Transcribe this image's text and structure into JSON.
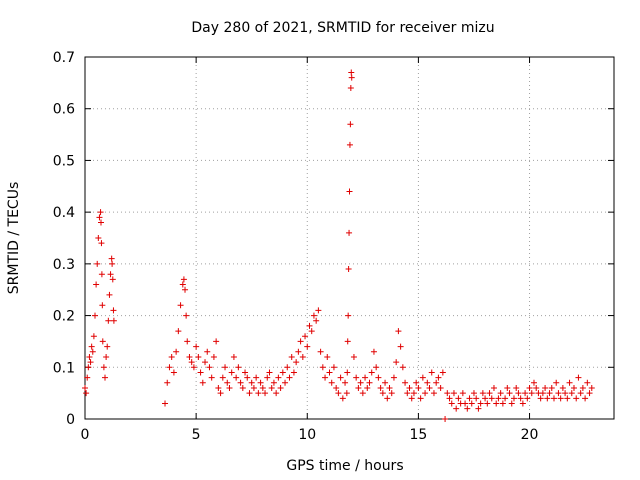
{
  "colors": {
    "series": "#e00000",
    "grid": "#a0a0a0",
    "axis": "#000000"
  },
  "chart_data": {
    "type": "scatter",
    "title": "Day 280 of 2021, SRMTID for receiver mizu",
    "xlabel": "GPS time / hours",
    "ylabel": "SRMTID / TECUs",
    "xlim": [
      0,
      23.8
    ],
    "ylim": [
      0,
      0.7
    ],
    "grid": true,
    "marker": "plus",
    "x_ticks": [
      0,
      5,
      10,
      15,
      20
    ],
    "x_tick_labels": [
      "0",
      "5",
      "10",
      "15",
      "20"
    ],
    "y_ticks": [
      0,
      0.1,
      0.2,
      0.3,
      0.4,
      0.5,
      0.6,
      0.7
    ],
    "y_tick_labels": [
      "0",
      "0.1",
      "0.2",
      "0.3",
      "0.4",
      "0.5",
      "0.6",
      "0.7"
    ],
    "series": [
      {
        "name": "SRMTID",
        "x": [
          0.0,
          0.05,
          0.1,
          0.15,
          0.2,
          0.25,
          0.3,
          0.35,
          0.4,
          0.45,
          0.5,
          0.55,
          0.6,
          0.65,
          0.7,
          0.72,
          0.74,
          0.76,
          0.78,
          0.8,
          0.85,
          0.9,
          0.95,
          1.0,
          1.05,
          1.1,
          1.15,
          1.2,
          1.22,
          1.25,
          1.28,
          1.3,
          3.6,
          3.7,
          3.8,
          3.9,
          4.0,
          4.1,
          4.2,
          4.3,
          4.4,
          4.45,
          4.5,
          4.55,
          4.6,
          4.7,
          4.8,
          4.9,
          5.0,
          5.1,
          5.2,
          5.3,
          5.4,
          5.5,
          5.6,
          5.7,
          5.8,
          5.9,
          6.0,
          6.1,
          6.2,
          6.3,
          6.4,
          6.5,
          6.6,
          6.7,
          6.8,
          6.9,
          7.0,
          7.1,
          7.2,
          7.3,
          7.4,
          7.5,
          7.6,
          7.7,
          7.8,
          7.9,
          8.0,
          8.1,
          8.2,
          8.3,
          8.4,
          8.5,
          8.6,
          8.7,
          8.8,
          8.9,
          9.0,
          9.1,
          9.2,
          9.3,
          9.4,
          9.5,
          9.6,
          9.7,
          9.8,
          9.9,
          10.0,
          10.1,
          10.2,
          10.3,
          10.4,
          10.5,
          10.6,
          10.7,
          10.8,
          10.9,
          11.0,
          11.1,
          11.2,
          11.3,
          11.4,
          11.5,
          11.6,
          11.7,
          11.78,
          11.8,
          11.82,
          11.84,
          11.86,
          11.88,
          11.9,
          11.92,
          11.94,
          11.96,
          11.98,
          12.0,
          12.1,
          12.2,
          12.3,
          12.4,
          12.5,
          12.6,
          12.7,
          12.8,
          12.9,
          13.0,
          13.1,
          13.2,
          13.3,
          13.4,
          13.5,
          13.6,
          13.7,
          13.8,
          13.9,
          14.0,
          14.1,
          14.2,
          14.3,
          14.4,
          14.5,
          14.6,
          14.7,
          14.8,
          14.9,
          15.0,
          15.1,
          15.2,
          15.3,
          15.4,
          15.5,
          15.6,
          15.7,
          15.8,
          15.9,
          16.0,
          16.1,
          16.2,
          16.3,
          16.4,
          16.5,
          16.6,
          16.7,
          16.8,
          16.9,
          17.0,
          17.1,
          17.2,
          17.3,
          17.4,
          17.5,
          17.6,
          17.7,
          17.8,
          17.9,
          18.0,
          18.1,
          18.2,
          18.3,
          18.4,
          18.5,
          18.6,
          18.7,
          18.8,
          18.9,
          19.0,
          19.1,
          19.2,
          19.3,
          19.4,
          19.5,
          19.6,
          19.7,
          19.8,
          19.9,
          20.0,
          20.1,
          20.2,
          20.3,
          20.4,
          20.5,
          20.6,
          20.7,
          20.8,
          20.9,
          21.0,
          21.1,
          21.2,
          21.3,
          21.4,
          21.5,
          21.6,
          21.7,
          21.8,
          21.9,
          22.0,
          22.1,
          22.2,
          22.3,
          22.4,
          22.5,
          22.6,
          22.7,
          22.8
        ],
        "y": [
          0.06,
          0.05,
          0.08,
          0.1,
          0.12,
          0.11,
          0.14,
          0.13,
          0.16,
          0.2,
          0.26,
          0.3,
          0.35,
          0.39,
          0.4,
          0.38,
          0.34,
          0.28,
          0.22,
          0.15,
          0.1,
          0.08,
          0.12,
          0.14,
          0.19,
          0.24,
          0.28,
          0.31,
          0.3,
          0.27,
          0.21,
          0.19,
          0.03,
          0.07,
          0.1,
          0.12,
          0.09,
          0.13,
          0.17,
          0.22,
          0.26,
          0.27,
          0.25,
          0.2,
          0.15,
          0.12,
          0.11,
          0.1,
          0.14,
          0.12,
          0.09,
          0.07,
          0.11,
          0.13,
          0.1,
          0.08,
          0.12,
          0.15,
          0.06,
          0.05,
          0.08,
          0.1,
          0.07,
          0.06,
          0.09,
          0.12,
          0.08,
          0.1,
          0.07,
          0.06,
          0.09,
          0.08,
          0.05,
          0.07,
          0.06,
          0.08,
          0.05,
          0.07,
          0.06,
          0.05,
          0.08,
          0.09,
          0.06,
          0.07,
          0.05,
          0.08,
          0.06,
          0.09,
          0.07,
          0.1,
          0.08,
          0.12,
          0.09,
          0.11,
          0.13,
          0.15,
          0.12,
          0.16,
          0.14,
          0.18,
          0.17,
          0.2,
          0.19,
          0.21,
          0.13,
          0.1,
          0.08,
          0.12,
          0.09,
          0.07,
          0.1,
          0.06,
          0.05,
          0.08,
          0.04,
          0.07,
          0.05,
          0.09,
          0.15,
          0.2,
          0.29,
          0.36,
          0.44,
          0.53,
          0.57,
          0.64,
          0.67,
          0.66,
          0.12,
          0.08,
          0.06,
          0.07,
          0.05,
          0.08,
          0.06,
          0.07,
          0.09,
          0.13,
          0.1,
          0.08,
          0.06,
          0.05,
          0.07,
          0.04,
          0.06,
          0.05,
          0.08,
          0.11,
          0.17,
          0.14,
          0.1,
          0.07,
          0.05,
          0.06,
          0.04,
          0.05,
          0.07,
          0.06,
          0.04,
          0.08,
          0.05,
          0.07,
          0.06,
          0.09,
          0.05,
          0.07,
          0.08,
          0.06,
          0.09,
          0.0,
          0.05,
          0.04,
          0.03,
          0.05,
          0.02,
          0.04,
          0.03,
          0.05,
          0.03,
          0.02,
          0.04,
          0.03,
          0.05,
          0.04,
          0.02,
          0.03,
          0.05,
          0.04,
          0.03,
          0.05,
          0.04,
          0.06,
          0.03,
          0.04,
          0.05,
          0.03,
          0.04,
          0.06,
          0.05,
          0.03,
          0.04,
          0.06,
          0.05,
          0.04,
          0.03,
          0.05,
          0.04,
          0.06,
          0.05,
          0.07,
          0.06,
          0.05,
          0.04,
          0.05,
          0.06,
          0.04,
          0.05,
          0.06,
          0.04,
          0.07,
          0.05,
          0.04,
          0.06,
          0.05,
          0.04,
          0.07,
          0.05,
          0.06,
          0.04,
          0.08,
          0.05,
          0.06,
          0.04,
          0.07,
          0.05,
          0.06
        ]
      }
    ]
  }
}
